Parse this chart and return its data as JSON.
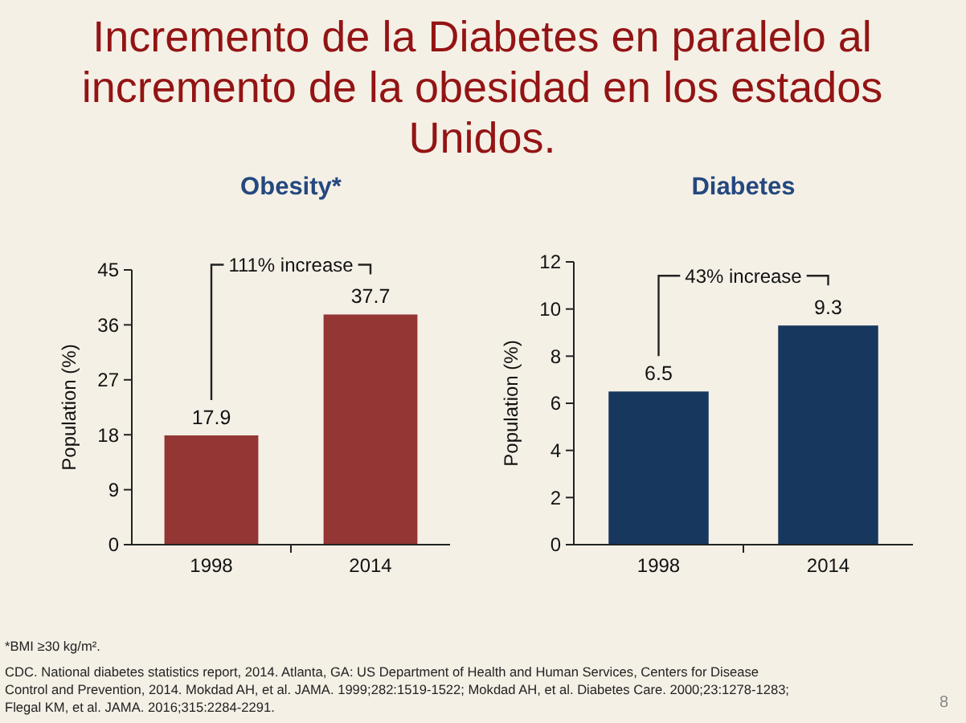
{
  "chart_data": [
    {
      "type": "other",
      "title": "Incremento de la Diabetes en paralelo al incremento de la obesidad en los estados Unidos."
    },
    {
      "type": "bar",
      "title": "Obesity*",
      "ylabel": "Population (%)",
      "categories": [
        "1998",
        "2014"
      ],
      "values": [
        17.9,
        37.7
      ],
      "color": "#943634",
      "ylim": [
        0,
        45
      ],
      "yticks": [
        0,
        9,
        18,
        27,
        36,
        45
      ],
      "data_labels": true,
      "annotations": [
        "111% increase"
      ]
    },
    {
      "type": "bar",
      "title": "Diabetes",
      "ylabel": "Population (%)",
      "categories": [
        "1998",
        "2014"
      ],
      "values": [
        6.5,
        9.3
      ],
      "color": "#17375e",
      "ylim": [
        0,
        12
      ],
      "yticks": [
        0,
        2,
        4,
        6,
        8,
        10,
        12
      ],
      "data_labels": true,
      "annotations": [
        "43% increase"
      ]
    },
    {
      "type": "other",
      "annotations": [
        "*BMI ≥30 kg/m².",
        "CDC. National diabetes statistics report, 2014. Atlanta, GA: US Department of Health and Human Services, Centers for Disease Control and Prevention, 2014. Mokdad AH, et al. JAMA. 1999;282:1519-1522; Mokdad AH, et al. Diabetes Care. 2000;23:1278-1283; Flegal KM, et al. JAMA. 2016;315:2284-2291.",
        "8"
      ]
    }
  ]
}
